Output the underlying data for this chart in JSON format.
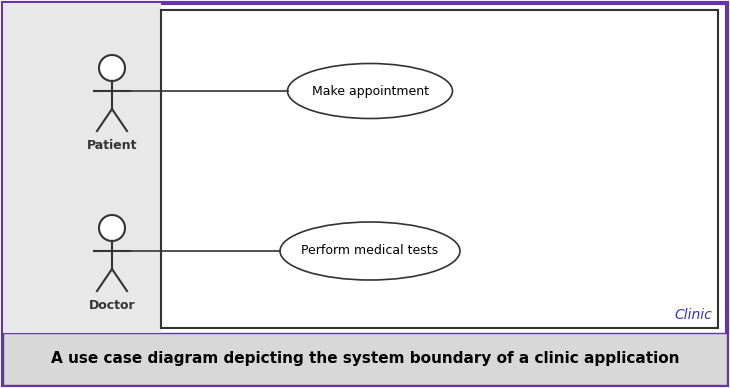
{
  "outer_border_color": "#6633aa",
  "outer_border_linewidth": 3,
  "background_color": "#ffffff",
  "left_panel_color": "#e8e8e8",
  "diagram_area_color": "#ffffff",
  "diagram_border_color": "#333333",
  "caption_bg_color": "#d8d8d8",
  "caption_text": "A use case diagram depicting the system boundary of a clinic application",
  "caption_fontsize": 11,
  "caption_color": "#000000",
  "system_label": "Clinic",
  "system_label_color": "#3333cc",
  "system_label_fontsize": 10,
  "actor1_label": "Patient",
  "actor2_label": "Doctor",
  "actor_label_fontsize": 9,
  "actor_color": "#333333",
  "usecase1_label": "Make appointment",
  "usecase2_label": "Perform medical tests",
  "usecase_fontsize": 9,
  "usecase_ellipse_color": "#333333",
  "line_color": "#333333",
  "fig_width": 7.3,
  "fig_height": 3.88,
  "dpi": 100
}
